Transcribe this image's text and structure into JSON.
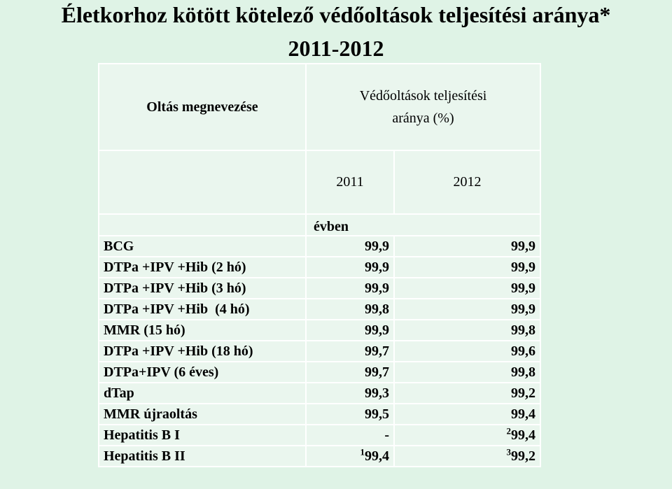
{
  "title": {
    "line1": "Életkorhoz kötött kötelező védőoltások teljesítési aránya*",
    "line2": "2011-2012"
  },
  "table": {
    "col_name_header": "Oltás megnevezése",
    "col_rate_header_line1": "Védőoltások teljesítési",
    "col_rate_header_line2": "aránya (%)",
    "year_2011": "2011",
    "year_2012": "2012",
    "subheader": "évben",
    "rows": [
      {
        "name": "BCG",
        "v2011": "99,9",
        "v2012": "99,9",
        "sup2011": "",
        "sup2012": ""
      },
      {
        "name": "DTPa +IPV +Hib (2 hó)",
        "v2011": "99,9",
        "v2012": "99,9",
        "sup2011": "",
        "sup2012": ""
      },
      {
        "name": "DTPa +IPV +Hib (3 hó)",
        "v2011": "99,9",
        "v2012": "99,9",
        "sup2011": "",
        "sup2012": ""
      },
      {
        "name": "DTPa +IPV +Hib  (4 hó)",
        "v2011": "99,8",
        "v2012": "99,9",
        "sup2011": "",
        "sup2012": ""
      },
      {
        "name": "MMR (15 hó)",
        "v2011": "99,9",
        "v2012": "99,8",
        "sup2011": "",
        "sup2012": ""
      },
      {
        "name": "DTPa +IPV +Hib (18 hó)",
        "v2011": "99,7",
        "v2012": "99,6",
        "sup2011": "",
        "sup2012": ""
      },
      {
        "name": "DTPa+IPV (6 éves)",
        "v2011": "99,7",
        "v2012": "99,8",
        "sup2011": "",
        "sup2012": ""
      },
      {
        "name": "dTap",
        "v2011": "99,3",
        "v2012": "99,2",
        "sup2011": "",
        "sup2012": ""
      },
      {
        "name": "MMR újraoltás",
        "v2011": "99,5",
        "v2012": "99,4",
        "sup2011": "",
        "sup2012": ""
      },
      {
        "name": "Hepatitis B I",
        "v2011": "-",
        "v2012": "99,4",
        "sup2011": "",
        "sup2012": "2"
      },
      {
        "name": "Hepatitis B II",
        "v2011": "99,4",
        "v2012": "99,2",
        "sup2011": "1",
        "sup2012": "3"
      }
    ]
  }
}
